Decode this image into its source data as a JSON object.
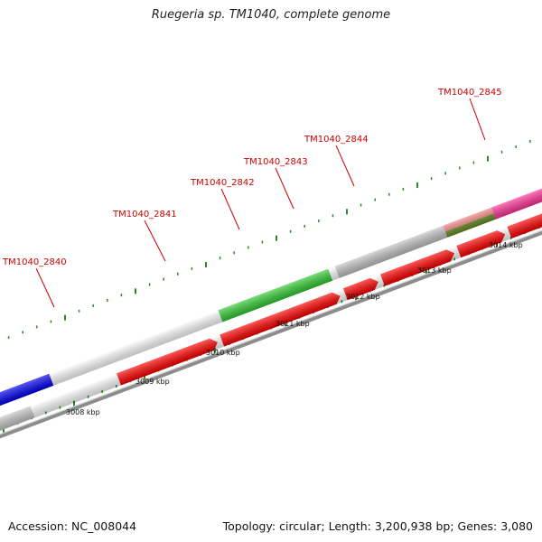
{
  "title": "Ruegeria sp. TM1040, complete genome",
  "footer": {
    "accession": "Accession: NC_008044",
    "summary": "Topology: circular; Length: 3,200,938 bp; Genes: 3,080"
  },
  "colors": {
    "forward_strand_red": "#ff0000",
    "reverse_strand_red": "#ff0000",
    "green": "#33cc33",
    "grey": "#c8c8c8",
    "pink": "#ff3399",
    "salmon": "#f08080",
    "olive": "#6b8e23",
    "blue": "#0000ee",
    "tick": "#2a8a2a",
    "backbone": "#888888",
    "label": "#cc0000"
  },
  "gene_labels": [
    {
      "text": "TM1040_2840"
    },
    {
      "text": "TM1040_2841"
    },
    {
      "text": "TM1040_2842"
    },
    {
      "text": "TM1040_2843"
    },
    {
      "text": "TM1040_2844"
    },
    {
      "text": "TM1040_2845"
    }
  ],
  "scale_labels": [
    "3008 kbp",
    "3009 kbp",
    "3010 kbp",
    "3011 kbp",
    "3012 kbp",
    "3013 kbp",
    "3014 kbp"
  ]
}
